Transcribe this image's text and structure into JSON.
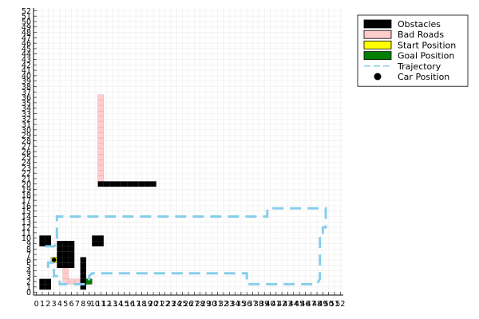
{
  "chart_data": {
    "type": "grid-map",
    "title": "",
    "xlabel": "",
    "ylabel": "",
    "xlim": [
      -0.5,
      52.5
    ],
    "ylim": [
      -0.5,
      52.5
    ],
    "x_ticks": [
      "0",
      "1",
      "2",
      "3",
      "4",
      "5",
      "6",
      "7",
      "8",
      "9",
      "10",
      "11",
      "12",
      "13",
      "14",
      "15",
      "16",
      "17",
      "18",
      "19",
      "20",
      "21",
      "22",
      "23",
      "24",
      "25",
      "26",
      "27",
      "28",
      "29",
      "30",
      "31",
      "32",
      "33",
      "34",
      "35",
      "36",
      "37",
      "38",
      "39",
      "40",
      "41",
      "42",
      "43",
      "44",
      "45",
      "46",
      "47",
      "48",
      "49",
      "50",
      "51",
      "52"
    ],
    "y_ticks": [
      "0",
      "1",
      "2",
      "3",
      "4",
      "5",
      "6",
      "7",
      "8",
      "9",
      "10",
      "11",
      "12",
      "13",
      "14",
      "15",
      "16",
      "17",
      "18",
      "19",
      "20",
      "21",
      "22",
      "23",
      "24",
      "25",
      "26",
      "27",
      "28",
      "29",
      "30",
      "31",
      "32",
      "33",
      "34",
      "35",
      "36",
      "37",
      "38",
      "39",
      "40",
      "41",
      "42",
      "43",
      "44",
      "45",
      "46",
      "47",
      "48",
      "49",
      "50",
      "51",
      "52"
    ],
    "grid": true,
    "legend_position": "top-right",
    "colors": {
      "obstacle": "#000000",
      "bad_road": "#ffcccc",
      "start": "#ffff00",
      "goal": "#008000",
      "trajectory": "#87ceeb",
      "car": "#000000",
      "grid": "#ececec"
    },
    "legend": [
      {
        "label": "Obstacles",
        "symbol": "obstacle"
      },
      {
        "label": "Bad Roads",
        "symbol": "bad_road"
      },
      {
        "label": "Start Position",
        "symbol": "start"
      },
      {
        "label": "Goal Position",
        "symbol": "goal"
      },
      {
        "label": "Trajectory",
        "symbol": "trajectory"
      },
      {
        "label": "Car Position",
        "symbol": "car"
      }
    ],
    "obstacles": [
      [
        1,
        9
      ],
      [
        2,
        9
      ],
      [
        1,
        10
      ],
      [
        2,
        10
      ],
      [
        1,
        1
      ],
      [
        2,
        1
      ],
      [
        1,
        2
      ],
      [
        2,
        2
      ],
      [
        4,
        5
      ],
      [
        5,
        5
      ],
      [
        6,
        5
      ],
      [
        4,
        6
      ],
      [
        5,
        6
      ],
      [
        6,
        6
      ],
      [
        4,
        7
      ],
      [
        5,
        7
      ],
      [
        6,
        7
      ],
      [
        4,
        8
      ],
      [
        5,
        8
      ],
      [
        6,
        8
      ],
      [
        4,
        9
      ],
      [
        5,
        9
      ],
      [
        6,
        9
      ],
      [
        8,
        1
      ],
      [
        8,
        2
      ],
      [
        8,
        3
      ],
      [
        8,
        4
      ],
      [
        8,
        5
      ],
      [
        8,
        6
      ],
      [
        10,
        9
      ],
      [
        11,
        9
      ],
      [
        10,
        10
      ],
      [
        11,
        10
      ],
      [
        11,
        20
      ],
      [
        12,
        20
      ],
      [
        13,
        20
      ],
      [
        14,
        20
      ],
      [
        15,
        20
      ],
      [
        16,
        20
      ],
      [
        17,
        20
      ],
      [
        18,
        20
      ],
      [
        19,
        20
      ],
      [
        20,
        20
      ]
    ],
    "bad_roads": [
      [
        11,
        21
      ],
      [
        11,
        22
      ],
      [
        11,
        23
      ],
      [
        11,
        24
      ],
      [
        11,
        25
      ],
      [
        11,
        26
      ],
      [
        11,
        27
      ],
      [
        11,
        28
      ],
      [
        11,
        29
      ],
      [
        11,
        30
      ],
      [
        11,
        31
      ],
      [
        11,
        32
      ],
      [
        11,
        33
      ],
      [
        11,
        34
      ],
      [
        11,
        35
      ],
      [
        11,
        36
      ],
      [
        5,
        2
      ],
      [
        6,
        2
      ],
      [
        7,
        2
      ],
      [
        5,
        3
      ],
      [
        5,
        4
      ]
    ],
    "start": [
      3,
      6
    ],
    "goal": [
      9,
      2
    ],
    "car": [
      3,
      6
    ],
    "trajectory": [
      [
        2,
        4.5
      ],
      [
        2,
        5.5
      ],
      [
        2.5,
        5.5
      ],
      [
        3,
        5.5
      ],
      [
        3,
        4
      ],
      [
        3,
        3
      ],
      [
        4,
        3
      ],
      [
        4,
        2
      ],
      [
        4,
        1.5
      ],
      [
        5,
        1.5
      ],
      [
        7,
        1.5
      ],
      [
        8,
        1.5
      ],
      [
        8.5,
        1.5
      ],
      [
        9,
        2
      ],
      [
        9,
        3
      ],
      [
        9.5,
        3.5
      ],
      [
        10,
        3.5
      ],
      [
        15,
        3.5
      ],
      [
        20,
        3.5
      ],
      [
        25,
        3.5
      ],
      [
        30,
        3.5
      ],
      [
        35,
        3.5
      ],
      [
        36,
        3.5
      ],
      [
        36,
        2.5
      ],
      [
        36,
        1.5
      ],
      [
        37,
        1.5
      ],
      [
        42,
        1.5
      ],
      [
        47,
        1.5
      ],
      [
        48,
        1.5
      ],
      [
        48.5,
        2.5
      ],
      [
        48.5,
        5
      ],
      [
        48.5,
        8
      ],
      [
        48.5,
        11
      ],
      [
        49,
        11
      ],
      [
        49,
        12
      ],
      [
        49.5,
        12
      ],
      [
        49.5,
        14
      ],
      [
        49.5,
        15.5
      ],
      [
        48,
        15.5
      ],
      [
        44,
        15.5
      ],
      [
        40,
        15.5
      ],
      [
        39.5,
        15.5
      ],
      [
        39.5,
        14
      ],
      [
        38,
        14
      ],
      [
        34,
        14
      ],
      [
        30,
        14
      ],
      [
        26,
        14
      ],
      [
        22,
        14
      ],
      [
        18,
        14
      ],
      [
        14,
        14
      ],
      [
        10,
        14
      ],
      [
        6,
        14
      ],
      [
        3.5,
        14
      ],
      [
        3.5,
        13
      ],
      [
        3.5,
        12
      ],
      [
        3.5,
        9
      ],
      [
        3,
        8.5
      ],
      [
        2,
        8.5
      ],
      [
        1,
        8.5
      ]
    ]
  }
}
